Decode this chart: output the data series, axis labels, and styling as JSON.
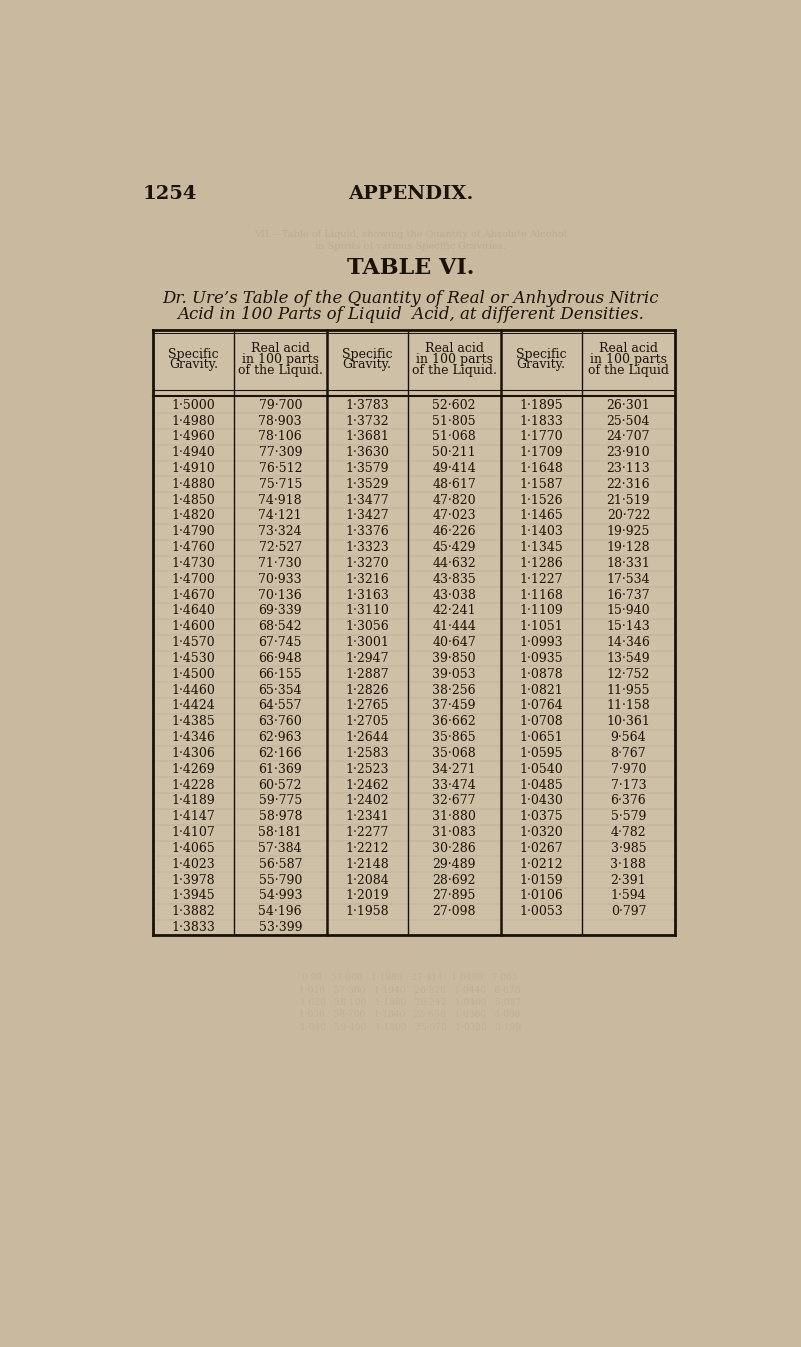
{
  "page_num": "1254",
  "appendix": "APPENDIX.",
  "table_title": "TABLE VI.",
  "subtitle1": "Dr. Ure’s Table of the Quantity of Real or Anhydrous Nitric",
  "subtitle2": "Acid in 100 Parts of Liquid  Acid, at different Densities.",
  "col_headers": [
    [
      "Specific",
      "Gravity."
    ],
    [
      "Real acid",
      "in 100 parts",
      "of the Liquid."
    ],
    [
      "Specific",
      "Gravity."
    ],
    [
      "Real acid",
      "in 100 parts",
      "of the Liquid."
    ],
    [
      "Specific",
      "Gravity."
    ],
    [
      "Real acid",
      "in 100 parts",
      "of the Liquid"
    ]
  ],
  "rows": [
    [
      "1·5000",
      "79·700",
      "1·3783",
      "52·602",
      "1·1895",
      "26·301"
    ],
    [
      "1·4980",
      "78·903",
      "1·3732",
      "51·805",
      "1·1833",
      "25·504"
    ],
    [
      "1·4960",
      "78·106",
      "1·3681",
      "51·068",
      "1·1770",
      "24·707"
    ],
    [
      "1·4940",
      "77·309",
      "1·3630",
      "50·211",
      "1·1709",
      "23·910"
    ],
    [
      "1·4910",
      "76·512",
      "1·3579",
      "49·414",
      "1·1648",
      "23·113"
    ],
    [
      "1·4880",
      "75·715",
      "1·3529",
      "48·617",
      "1·1587",
      "22·316"
    ],
    [
      "1·4850",
      "74·918",
      "1·3477",
      "47·820",
      "1·1526",
      "21·519"
    ],
    [
      "1·4820",
      "74·121",
      "1·3427",
      "47·023",
      "1·1465",
      "20·722"
    ],
    [
      "1·4790",
      "73·324",
      "1·3376",
      "46·226",
      "1·1403",
      "19·925"
    ],
    [
      "1·4760",
      "72·527",
      "1·3323",
      "45·429",
      "1·1345",
      "19·128"
    ],
    [
      "1·4730",
      "71·730",
      "1·3270",
      "44·632",
      "1·1286",
      "18·331"
    ],
    [
      "1·4700",
      "70·933",
      "1·3216",
      "43·835",
      "1·1227",
      "17·534"
    ],
    [
      "1·4670",
      "70·136",
      "1·3163",
      "43·038",
      "1·1168",
      "16·737"
    ],
    [
      "1·4640",
      "69·339",
      "1·3110",
      "42·241",
      "1·1109",
      "15·940"
    ],
    [
      "1·4600",
      "68·542",
      "1·3056",
      "41·444",
      "1·1051",
      "15·143"
    ],
    [
      "1·4570",
      "67·745",
      "1·3001",
      "40·647",
      "1·0993",
      "14·346"
    ],
    [
      "1·4530",
      "66·948",
      "1·2947",
      "39·850",
      "1·0935",
      "13·549"
    ],
    [
      "1·4500",
      "66·155",
      "1·2887",
      "39·053",
      "1·0878",
      "12·752"
    ],
    [
      "1·4460",
      "65·354",
      "1·2826",
      "38·256",
      "1·0821",
      "11·955"
    ],
    [
      "1·4424",
      "64·557",
      "1·2765",
      "37·459",
      "1·0764",
      "11·158"
    ],
    [
      "1·4385",
      "63·760",
      "1·2705",
      "36·662",
      "1·0708",
      "10·361"
    ],
    [
      "1·4346",
      "62·963",
      "1·2644",
      "35·865",
      "1·0651",
      "9·564"
    ],
    [
      "1·4306",
      "62·166",
      "1·2583",
      "35·068",
      "1·0595",
      "8·767"
    ],
    [
      "1·4269",
      "61·369",
      "1·2523",
      "34·271",
      "1·0540",
      "7·970"
    ],
    [
      "1·4228",
      "60·572",
      "1·2462",
      "33·474",
      "1·0485",
      "7·173"
    ],
    [
      "1·4189",
      "59·775",
      "1·2402",
      "32·677",
      "1·0430",
      "6·376"
    ],
    [
      "1·4147",
      "58·978",
      "1·2341",
      "31·880",
      "1·0375",
      "5·579"
    ],
    [
      "1·4107",
      "58·181",
      "1·2277",
      "31·083",
      "1·0320",
      "4·782"
    ],
    [
      "1·4065",
      "57·384",
      "1·2212",
      "30·286",
      "1·0267",
      "3·985"
    ],
    [
      "1·4023",
      "56·587",
      "1·2148",
      "29·489",
      "1·0212",
      "3·188"
    ],
    [
      "1·3978",
      "55·790",
      "1·2084",
      "28·692",
      "1·0159",
      "2·391"
    ],
    [
      "1·3945",
      "54·993",
      "1·2019",
      "27·895",
      "1·0106",
      "1·594"
    ],
    [
      "1·3882",
      "54·196",
      "1·1958",
      "27·098",
      "1·0053",
      "0·797"
    ],
    [
      "1·3833",
      "53·399",
      "",
      "",
      "",
      ""
    ]
  ],
  "bg_color": "#bfad96",
  "page_bg": "#c9b99e",
  "text_color": "#1a1208",
  "table_bg": "#cec0a6",
  "ghost_color": "#b0a088"
}
